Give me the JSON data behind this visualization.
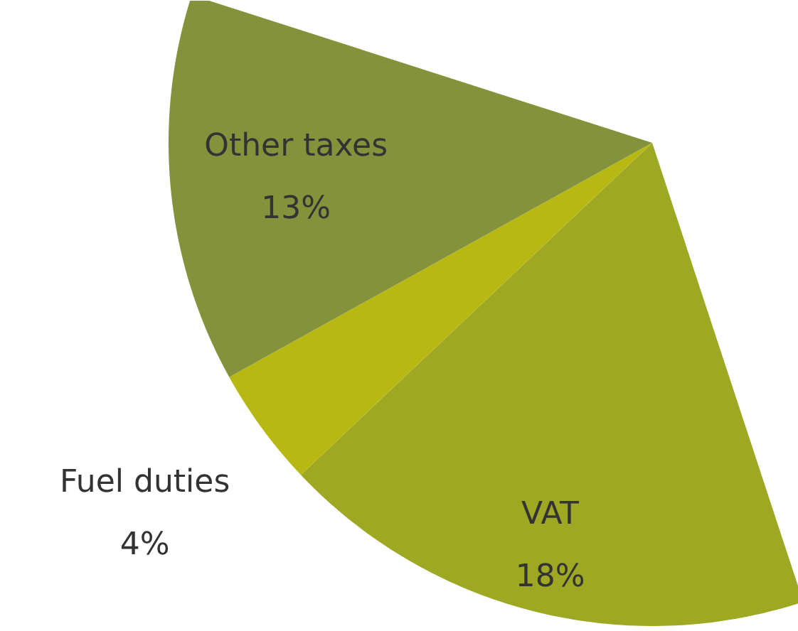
{
  "chart_data": {
    "type": "pie",
    "categories": [
      "VAT",
      "Fuel duties",
      "Other taxes"
    ],
    "values": [
      18,
      4,
      13
    ],
    "value_labels": [
      "18%",
      "4%",
      "13%"
    ],
    "colors": [
      "#9ea822",
      "#b8b812",
      "#84923c"
    ]
  }
}
